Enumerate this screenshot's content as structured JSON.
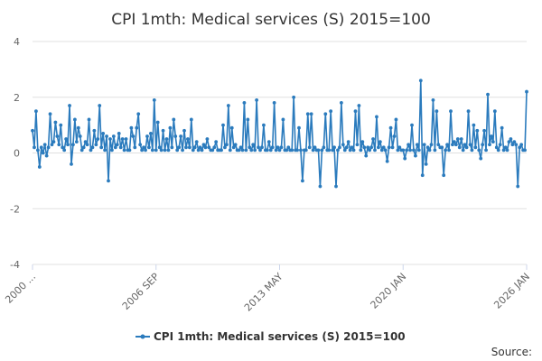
{
  "chart_data": {
    "type": "line",
    "title": "CPI 1mth: Medical services (S) 2015=100",
    "xlabel": "",
    "ylabel": "",
    "ylim": [
      -4,
      4
    ],
    "yticks": [
      -4,
      -2,
      0,
      2,
      4
    ],
    "x_start": "2000 JAN",
    "x_end": "2026 JAN",
    "x_ticks": [
      "2000 ...",
      "2006 SEP",
      "2013 MAY",
      "2020 JAN",
      "2026 JAN"
    ],
    "grid": "horizontal",
    "legend": "bottom-center",
    "color": "#2b7bbd",
    "source_label": "Source:",
    "series": [
      {
        "name": "CPI 1mth: Medical services (S) 2015=100",
        "values": [
          0.8,
          0.2,
          1.5,
          0.1,
          -0.5,
          0.2,
          0.0,
          0.3,
          -0.1,
          0.2,
          1.4,
          0.3,
          0.4,
          1.1,
          0.6,
          0.3,
          1.0,
          0.2,
          0.1,
          0.5,
          0.3,
          1.7,
          -0.4,
          0.3,
          1.2,
          0.4,
          0.9,
          0.6,
          0.1,
          0.2,
          0.4,
          0.3,
          1.2,
          0.1,
          0.2,
          0.8,
          0.3,
          0.5,
          1.7,
          0.2,
          0.7,
          0.1,
          0.6,
          -1.0,
          0.5,
          0.1,
          0.6,
          0.2,
          0.3,
          0.7,
          0.2,
          0.5,
          0.1,
          0.5,
          0.1,
          0.1,
          0.9,
          0.6,
          0.2,
          0.9,
          1.4,
          0.3,
          0.1,
          0.2,
          0.1,
          0.6,
          0.2,
          0.7,
          0.1,
          1.9,
          0.1,
          1.1,
          0.2,
          0.1,
          0.8,
          0.1,
          0.5,
          0.1,
          0.9,
          0.2,
          1.2,
          0.6,
          0.1,
          0.2,
          0.6,
          0.1,
          0.8,
          0.2,
          0.5,
          0.2,
          1.2,
          0.1,
          0.2,
          0.4,
          0.1,
          0.2,
          0.1,
          0.3,
          0.2,
          0.5,
          0.2,
          0.1,
          0.1,
          0.2,
          0.4,
          0.1,
          0.1,
          0.1,
          1.0,
          0.2,
          0.3,
          1.7,
          0.1,
          0.9,
          0.2,
          0.3,
          0.1,
          0.1,
          0.2,
          0.1,
          1.8,
          0.1,
          1.2,
          0.2,
          0.1,
          0.3,
          0.1,
          1.9,
          0.2,
          0.1,
          0.2,
          1.0,
          0.1,
          0.1,
          0.4,
          0.1,
          0.2,
          1.8,
          0.1,
          0.2,
          0.1,
          0.2,
          1.2,
          0.1,
          0.1,
          0.2,
          0.1,
          0.1,
          2.0,
          0.1,
          0.1,
          0.9,
          0.1,
          -1.0,
          0.1,
          0.1,
          1.4,
          0.2,
          1.4,
          0.1,
          0.2,
          0.1,
          0.1,
          -1.2,
          0.1,
          0.2,
          1.4,
          0.1,
          0.1,
          1.5,
          0.1,
          0.2,
          -1.2,
          0.1,
          0.2,
          1.8,
          0.3,
          0.1,
          0.2,
          0.4,
          0.1,
          0.2,
          0.1,
          1.5,
          0.3,
          1.7,
          0.1,
          0.4,
          0.2,
          -0.1,
          0.2,
          0.1,
          0.2,
          0.5,
          0.1,
          1.3,
          0.2,
          0.4,
          0.1,
          0.2,
          0.1,
          -0.3,
          0.2,
          0.9,
          0.2,
          0.6,
          1.2,
          0.1,
          0.2,
          0.1,
          0.1,
          -0.2,
          0.1,
          0.3,
          0.1,
          1.0,
          0.1,
          -0.1,
          0.3,
          0.1,
          2.6,
          -0.8,
          0.3,
          -0.4,
          0.2,
          0.1,
          0.3,
          1.9,
          0.1,
          1.5,
          0.3,
          0.2,
          0.2,
          -0.8,
          0.1,
          0.3,
          0.1,
          1.5,
          0.3,
          0.4,
          0.3,
          0.5,
          0.2,
          0.5,
          0.1,
          0.3,
          0.2,
          1.5,
          0.3,
          0.1,
          1.0,
          0.2,
          0.8,
          0.1,
          -0.2,
          0.3,
          0.8,
          0.1,
          2.1,
          0.3,
          0.6,
          0.4,
          1.5,
          0.2,
          0.1,
          0.3,
          0.9,
          0.1,
          0.2,
          0.1,
          0.4,
          0.5,
          0.3,
          0.4,
          0.3,
          -1.2,
          0.2,
          0.3,
          0.1,
          0.1,
          2.2
        ]
      }
    ]
  }
}
